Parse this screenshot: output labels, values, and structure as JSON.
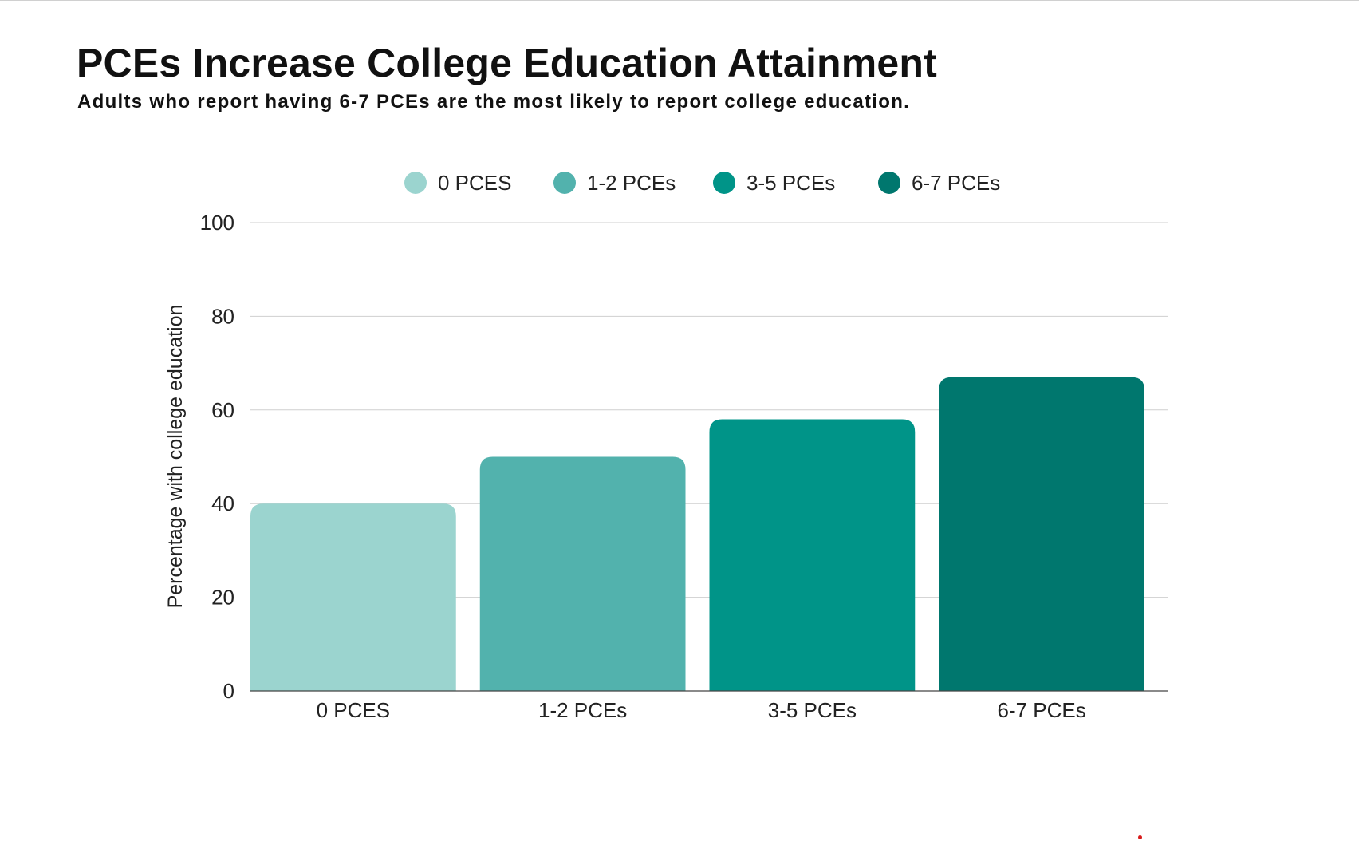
{
  "chart_data": {
    "type": "bar",
    "title": "PCEs Increase College Education Attainment",
    "subtitle": "Adults who report having 6-7 PCEs are the most likely to report college education.",
    "xlabel": "",
    "ylabel": "Percentage with college education",
    "categories": [
      "0 PCES",
      "1-2 PCEs",
      "3-5 PCEs",
      "6-7 PCEs"
    ],
    "values": [
      40,
      50,
      58,
      67
    ],
    "colors": [
      "#9bd4cf",
      "#52b2ad",
      "#009488",
      "#00776e"
    ],
    "ylim": [
      0,
      100
    ],
    "yticks": [
      0,
      20,
      40,
      60,
      80,
      100
    ],
    "grid": true,
    "legend": {
      "placement": "top-center",
      "entries": [
        "0 PCES",
        "1-2 PCEs",
        "3-5 PCEs",
        "6-7 PCEs"
      ]
    }
  }
}
